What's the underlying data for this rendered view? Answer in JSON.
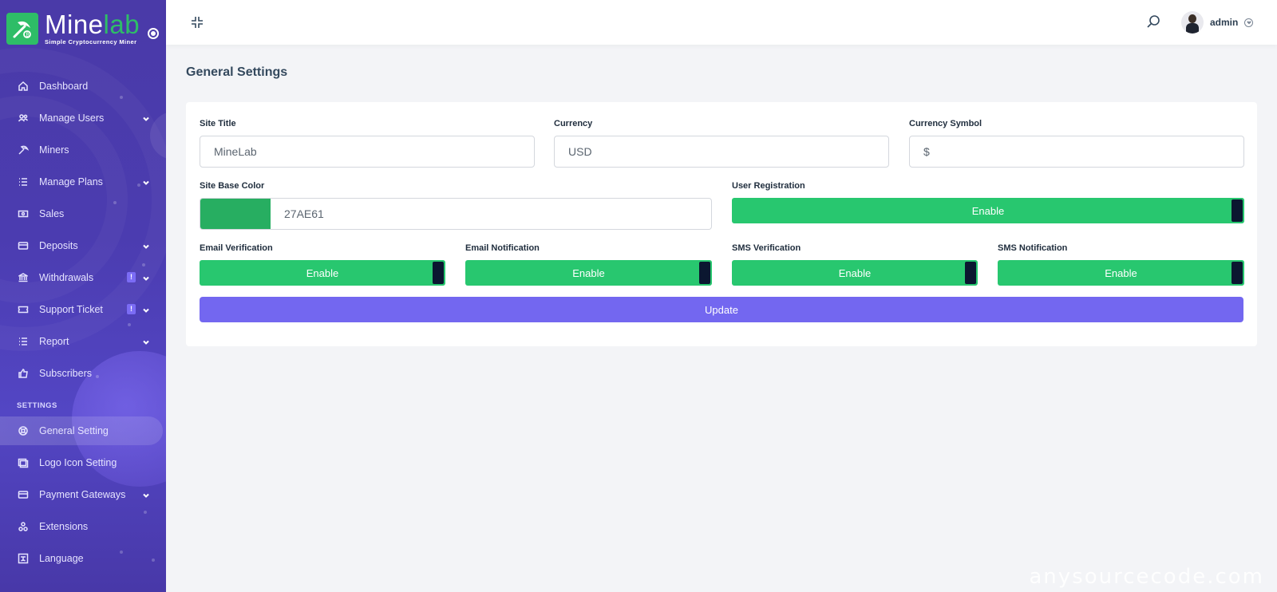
{
  "brand": {
    "name_part1": "Mine",
    "name_part2": "lab",
    "tagline": "Simple Cryptocurrency Miner"
  },
  "sidebar": {
    "items": [
      {
        "label": "Dashboard",
        "icon": "home-icon"
      },
      {
        "label": "Manage Users",
        "icon": "users-icon",
        "has_submenu": true
      },
      {
        "label": "Miners",
        "icon": "pickaxe-icon"
      },
      {
        "label": "Manage Plans",
        "icon": "list-icon",
        "has_submenu": true
      },
      {
        "label": "Sales",
        "icon": "money-icon"
      },
      {
        "label": "Deposits",
        "icon": "credit-card-icon",
        "has_submenu": true
      },
      {
        "label": "Withdrawals",
        "icon": "bank-icon",
        "badge": "!",
        "has_submenu": true
      },
      {
        "label": "Support Ticket",
        "icon": "ticket-icon",
        "badge": "!",
        "has_submenu": true
      },
      {
        "label": "Report",
        "icon": "list-icon",
        "has_submenu": true
      },
      {
        "label": "Subscribers",
        "icon": "thumbs-up-icon"
      }
    ],
    "section_settings": "SETTINGS",
    "settings_items": [
      {
        "label": "General Setting",
        "icon": "life-ring-icon",
        "active": true
      },
      {
        "label": "Logo Icon Setting",
        "icon": "images-icon"
      },
      {
        "label": "Payment Gateways",
        "icon": "credit-card-icon",
        "has_submenu": true
      },
      {
        "label": "Extensions",
        "icon": "cogs-icon"
      },
      {
        "label": "Language",
        "icon": "language-icon"
      }
    ]
  },
  "topbar": {
    "user_name": "admin"
  },
  "page": {
    "title": "General Settings"
  },
  "form": {
    "site_title": {
      "label": "Site Title",
      "value": "MineLab"
    },
    "currency": {
      "label": "Currency",
      "value": "USD"
    },
    "currency_symbol": {
      "label": "Currency Symbol",
      "value": "$"
    },
    "site_base_color": {
      "label": "Site Base Color",
      "value": "27AE61",
      "swatch": "#27ae61"
    },
    "user_registration": {
      "label": "User Registration",
      "state": "Enable"
    },
    "email_verification": {
      "label": "Email Verification",
      "state": "Enable"
    },
    "email_notification": {
      "label": "Email Notification",
      "state": "Enable"
    },
    "sms_verification": {
      "label": "SMS Verification",
      "state": "Enable"
    },
    "sms_notification": {
      "label": "SMS Notification",
      "state": "Enable"
    },
    "update_label": "Update"
  },
  "colors": {
    "sidebar": "#4b3cb0",
    "toggle_on": "#28c76f",
    "primary": "#7367f0",
    "brand_green": "#2ebd67"
  },
  "watermark": "anysourcecode.com"
}
